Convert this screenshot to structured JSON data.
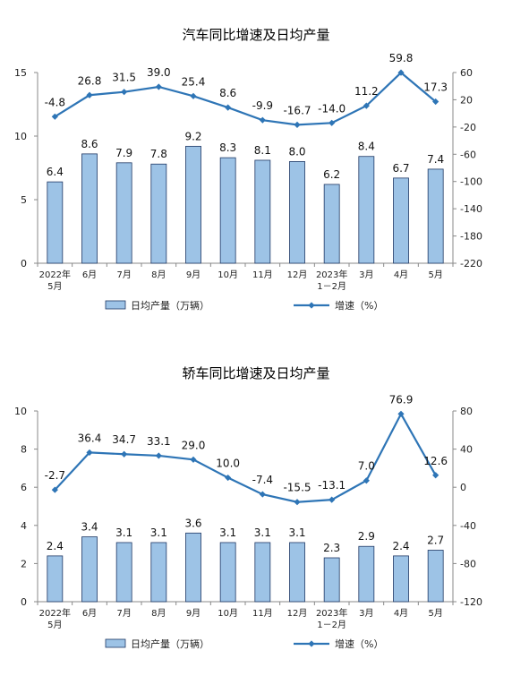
{
  "chart_data": [
    {
      "type": "bar",
      "title": "汽车同比增速及日均产量",
      "categories": [
        [
          "2022年",
          "5月"
        ],
        [
          "6月"
        ],
        [
          "7月"
        ],
        [
          "8月"
        ],
        [
          "9月"
        ],
        [
          "10月"
        ],
        [
          "11月"
        ],
        [
          "12月"
        ],
        [
          "2023年",
          "1－2月"
        ],
        [
          "3月"
        ],
        [
          "4月"
        ],
        [
          "5月"
        ]
      ],
      "series": [
        {
          "name": "日均产量（万辆）",
          "type": "bar",
          "axis": "left",
          "color": "#9dc3e6",
          "values": [
            6.4,
            8.6,
            7.9,
            7.8,
            9.2,
            8.3,
            8.1,
            8.0,
            6.2,
            8.4,
            6.7,
            7.4
          ]
        },
        {
          "name": "增速（%）",
          "type": "line",
          "axis": "right",
          "color": "#2e75b6",
          "values": [
            -4.8,
            26.8,
            31.5,
            39.0,
            25.4,
            8.6,
            -9.9,
            -16.7,
            -14.0,
            11.2,
            59.8,
            17.3
          ]
        }
      ],
      "left_axis": {
        "min": 0,
        "max": 15,
        "ticks": [
          0,
          5,
          10,
          15
        ]
      },
      "right_axis": {
        "min": -220,
        "max": 60,
        "ticks": [
          60,
          20,
          -20,
          -60,
          -100,
          -140,
          -180,
          -220
        ]
      },
      "legend_position": "bottom",
      "grid": false
    },
    {
      "type": "bar",
      "title": "轿车同比增速及日均产量",
      "categories": [
        [
          "2022年",
          "5月"
        ],
        [
          "6月"
        ],
        [
          "7月"
        ],
        [
          "8月"
        ],
        [
          "9月"
        ],
        [
          "10月"
        ],
        [
          "11月"
        ],
        [
          "12月"
        ],
        [
          "2023年",
          "1－2月"
        ],
        [
          "3月"
        ],
        [
          "4月"
        ],
        [
          "5月"
        ]
      ],
      "series": [
        {
          "name": "日均产量（万辆）",
          "type": "bar",
          "axis": "left",
          "color": "#9dc3e6",
          "values": [
            2.4,
            3.4,
            3.1,
            3.1,
            3.6,
            3.1,
            3.1,
            3.1,
            2.3,
            2.9,
            2.4,
            2.7
          ]
        },
        {
          "name": "增速（%）",
          "type": "line",
          "axis": "right",
          "color": "#2e75b6",
          "values": [
            -2.7,
            36.4,
            34.7,
            33.1,
            29.0,
            10.0,
            -7.4,
            -15.5,
            -13.1,
            7.0,
            76.9,
            12.6
          ]
        }
      ],
      "left_axis": {
        "min": 0,
        "max": 10,
        "ticks": [
          0,
          2,
          4,
          6,
          8,
          10
        ]
      },
      "right_axis": {
        "min": -120,
        "max": 80,
        "ticks": [
          80,
          40,
          0,
          -40,
          -80,
          -120
        ]
      },
      "legend_position": "bottom",
      "grid": false
    }
  ]
}
